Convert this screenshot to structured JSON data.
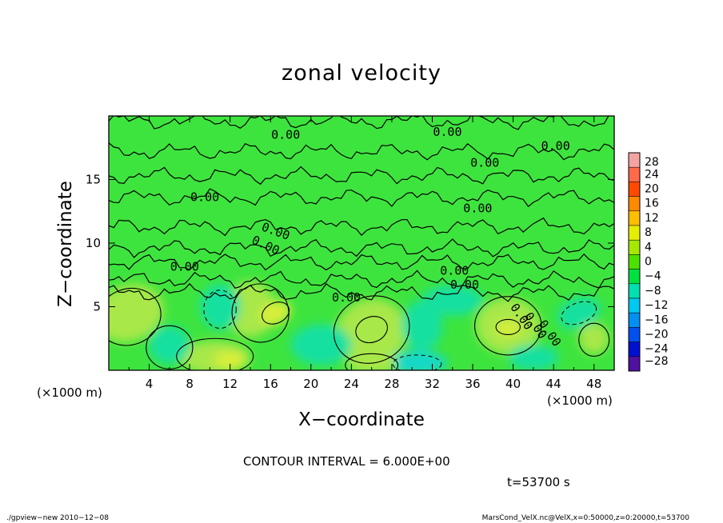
{
  "chart_data": {
    "type": "heatmap",
    "title": "zonal velocity",
    "xlabel": "X−coordinate",
    "ylabel": "Z−coordinate",
    "x_unit_label": "(×1000 m)",
    "xlim": [
      0,
      50
    ],
    "ylim": [
      0,
      20
    ],
    "x_ticks": [
      "4",
      "8",
      "12",
      "16",
      "20",
      "24",
      "28",
      "32",
      "36",
      "40",
      "44",
      "48"
    ],
    "y_ticks": [
      "5",
      "10",
      "15"
    ],
    "contour_interval_text": "CONTOUR INTERVAL = 6.000E+00",
    "contour_labels": [
      "0.00",
      "0.00",
      "0.00",
      "0.00",
      "0.00",
      "0.00",
      "0.00",
      "0.00",
      "0.00",
      "0.00",
      "0.00",
      "0.00",
      "0.00",
      "0.00",
      "0.00"
    ],
    "colorbar": {
      "levels": [
        28,
        24,
        20,
        16,
        12,
        8,
        4,
        0,
        -4,
        -8,
        -12,
        -16,
        -20,
        -24,
        -28
      ],
      "labels": [
        "28",
        "24",
        "20",
        "16",
        "12",
        "8",
        "4",
        "0",
        "−4",
        "−8",
        "−12",
        "−16",
        "−20",
        "−24",
        "−28"
      ],
      "colors": [
        "#f4a3a3",
        "#ff6a4a",
        "#ff4a00",
        "#ff8a00",
        "#ffbe00",
        "#e6ee00",
        "#a6e800",
        "#4ee000",
        "#00e040",
        "#00e0b0",
        "#00c8f0",
        "#0090f0",
        "#0050f0",
        "#0010d0",
        "#5010a0"
      ]
    },
    "field_colors": {
      "background": "#3ee43e",
      "positive": "#a8e84a",
      "strong_positive": "#d8ee3a",
      "negative": "#19e0a0",
      "strong_negative": "#18d8c8"
    },
    "time_text": "t=53700 s"
  },
  "footer": {
    "left": "./gpview−new   2010−12−08",
    "right": "MarsCond_VelX.nc@VelX,x=0:50000,z=0:20000,t=53700"
  }
}
